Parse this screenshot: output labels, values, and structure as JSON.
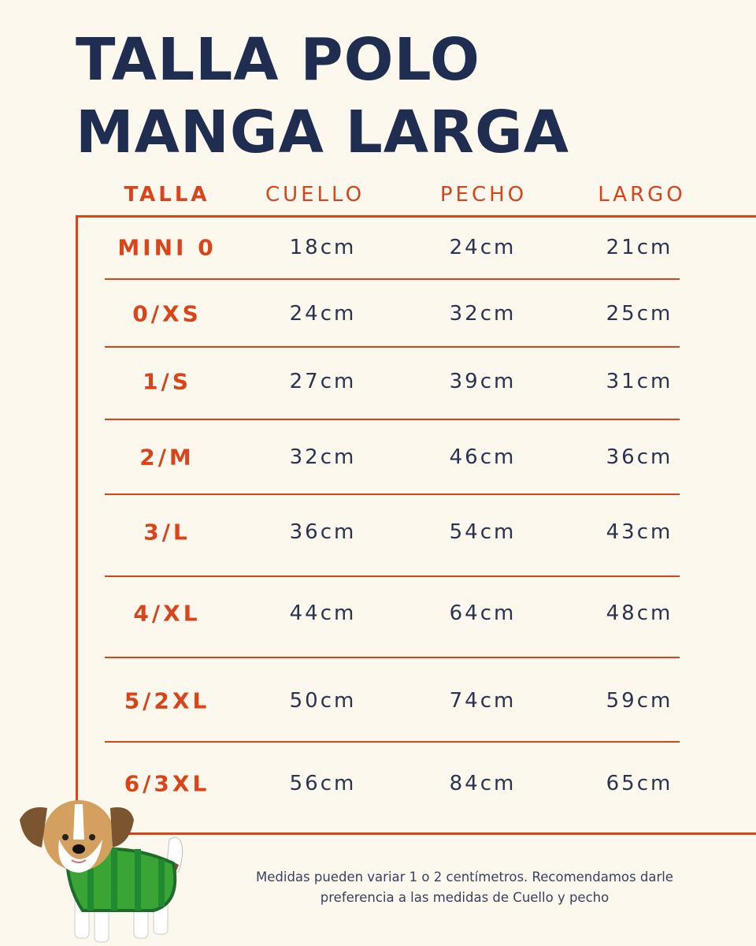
{
  "title": "TALLA POLO MANGA LARGA",
  "headers": [
    "TALLA",
    "CUELLO",
    "PECHO",
    "LARGO"
  ],
  "rows": [
    {
      "talla": "MINI 0",
      "cuello": "18cm",
      "pecho": "24cm",
      "largo": "21cm"
    },
    {
      "talla": "0/XS",
      "cuello": "24cm",
      "pecho": "32cm",
      "largo": "25cm"
    },
    {
      "talla": "1/S",
      "cuello": "27cm",
      "pecho": "39cm",
      "largo": "31cm"
    },
    {
      "talla": "2/M",
      "cuello": "32cm",
      "pecho": "46cm",
      "largo": "36cm"
    },
    {
      "talla": "3/L",
      "cuello": "36cm",
      "pecho": "54cm",
      "largo": "43cm"
    },
    {
      "talla": "4/XL",
      "cuello": "44cm",
      "pecho": "64cm",
      "largo": "48cm"
    },
    {
      "talla": "5/2XL",
      "cuello": "50cm",
      "pecho": "74cm",
      "largo": "59cm"
    },
    {
      "talla": "6/3XL",
      "cuello": "56cm",
      "pecho": "84cm",
      "largo": "65cm"
    }
  ],
  "note": "Medidas pueden variar 1 o 2 centímetros. Recomendamos darle preferencia a las medidas de Cuello y pecho",
  "colors": {
    "background": "#fdf8ee",
    "title": "#1f2d50",
    "accent": "#d9441a",
    "text": "#2a3350"
  },
  "illustration": "dog-in-green-striped-sweater"
}
